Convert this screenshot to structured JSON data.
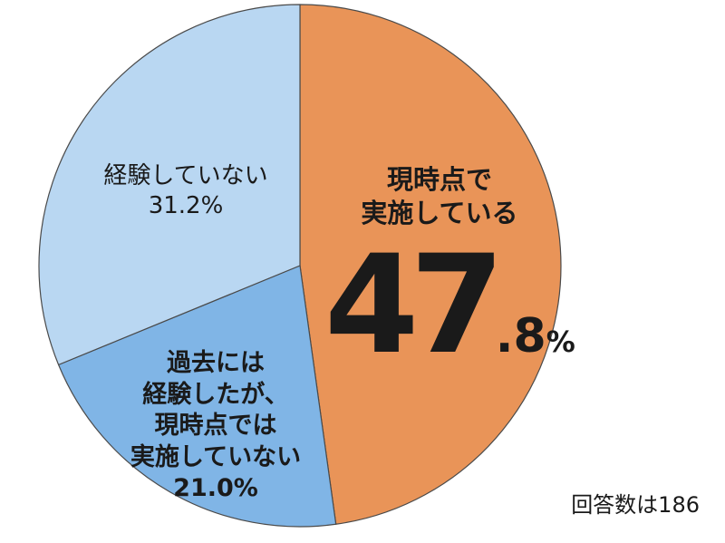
{
  "chart_data": {
    "type": "pie",
    "start": "top",
    "direction": "clockwise",
    "colors": {
      "current": "#E99458",
      "past": "#80B5E6",
      "not_experienced": "#B9D7F2",
      "border": "#4a4a4a"
    },
    "slices": [
      {
        "key": "current",
        "value": 47.8,
        "label_lines": [
          "現時点で",
          "実施している"
        ],
        "value_int": "47",
        "value_dec": ".8",
        "value_unit": "%"
      },
      {
        "key": "past",
        "value": 21.0,
        "label_lines": [
          "過去には",
          "経験したが、",
          "現時点では",
          "実施していない"
        ],
        "value_text": "21.0%"
      },
      {
        "key": "not_experienced",
        "value": 31.2,
        "label_lines": [
          "経験していない"
        ],
        "value_text": "31.2%"
      }
    ]
  },
  "note": "回答数は186"
}
